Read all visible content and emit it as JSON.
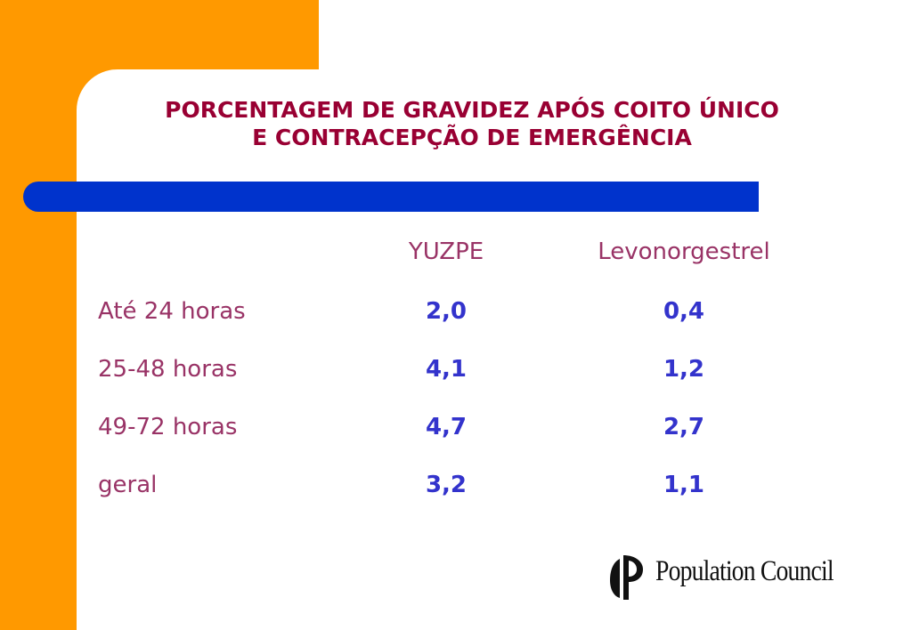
{
  "title": {
    "line1": "PORCENTAGEM DE GRAVIDEZ APÓS COITO ÚNICO",
    "line2": "E CONTRACEPÇÃO DE EMERGÊNCIA"
  },
  "table": {
    "headers": [
      "YUZPE",
      "Levonorgestrel"
    ],
    "rows": [
      {
        "label": "Até 24 horas",
        "yuzpe": "2,0",
        "levonorgestrel": "0,4"
      },
      {
        "label": "25-48 horas",
        "yuzpe": "4,1",
        "levonorgestrel": "1,2"
      },
      {
        "label": "49-72 horas",
        "yuzpe": "4,7",
        "levonorgestrel": "2,7"
      },
      {
        "label": "geral",
        "yuzpe": "3,2",
        "levonorgestrel": "1,1"
      }
    ]
  },
  "logo": {
    "icon": "population-council-logo-icon",
    "text": "Population Council"
  },
  "colors": {
    "accent_orange": "#FF9900",
    "divider_blue": "#0033CC",
    "title_red": "#990033",
    "label_purple": "#993366",
    "value_blue": "#3333CC"
  }
}
